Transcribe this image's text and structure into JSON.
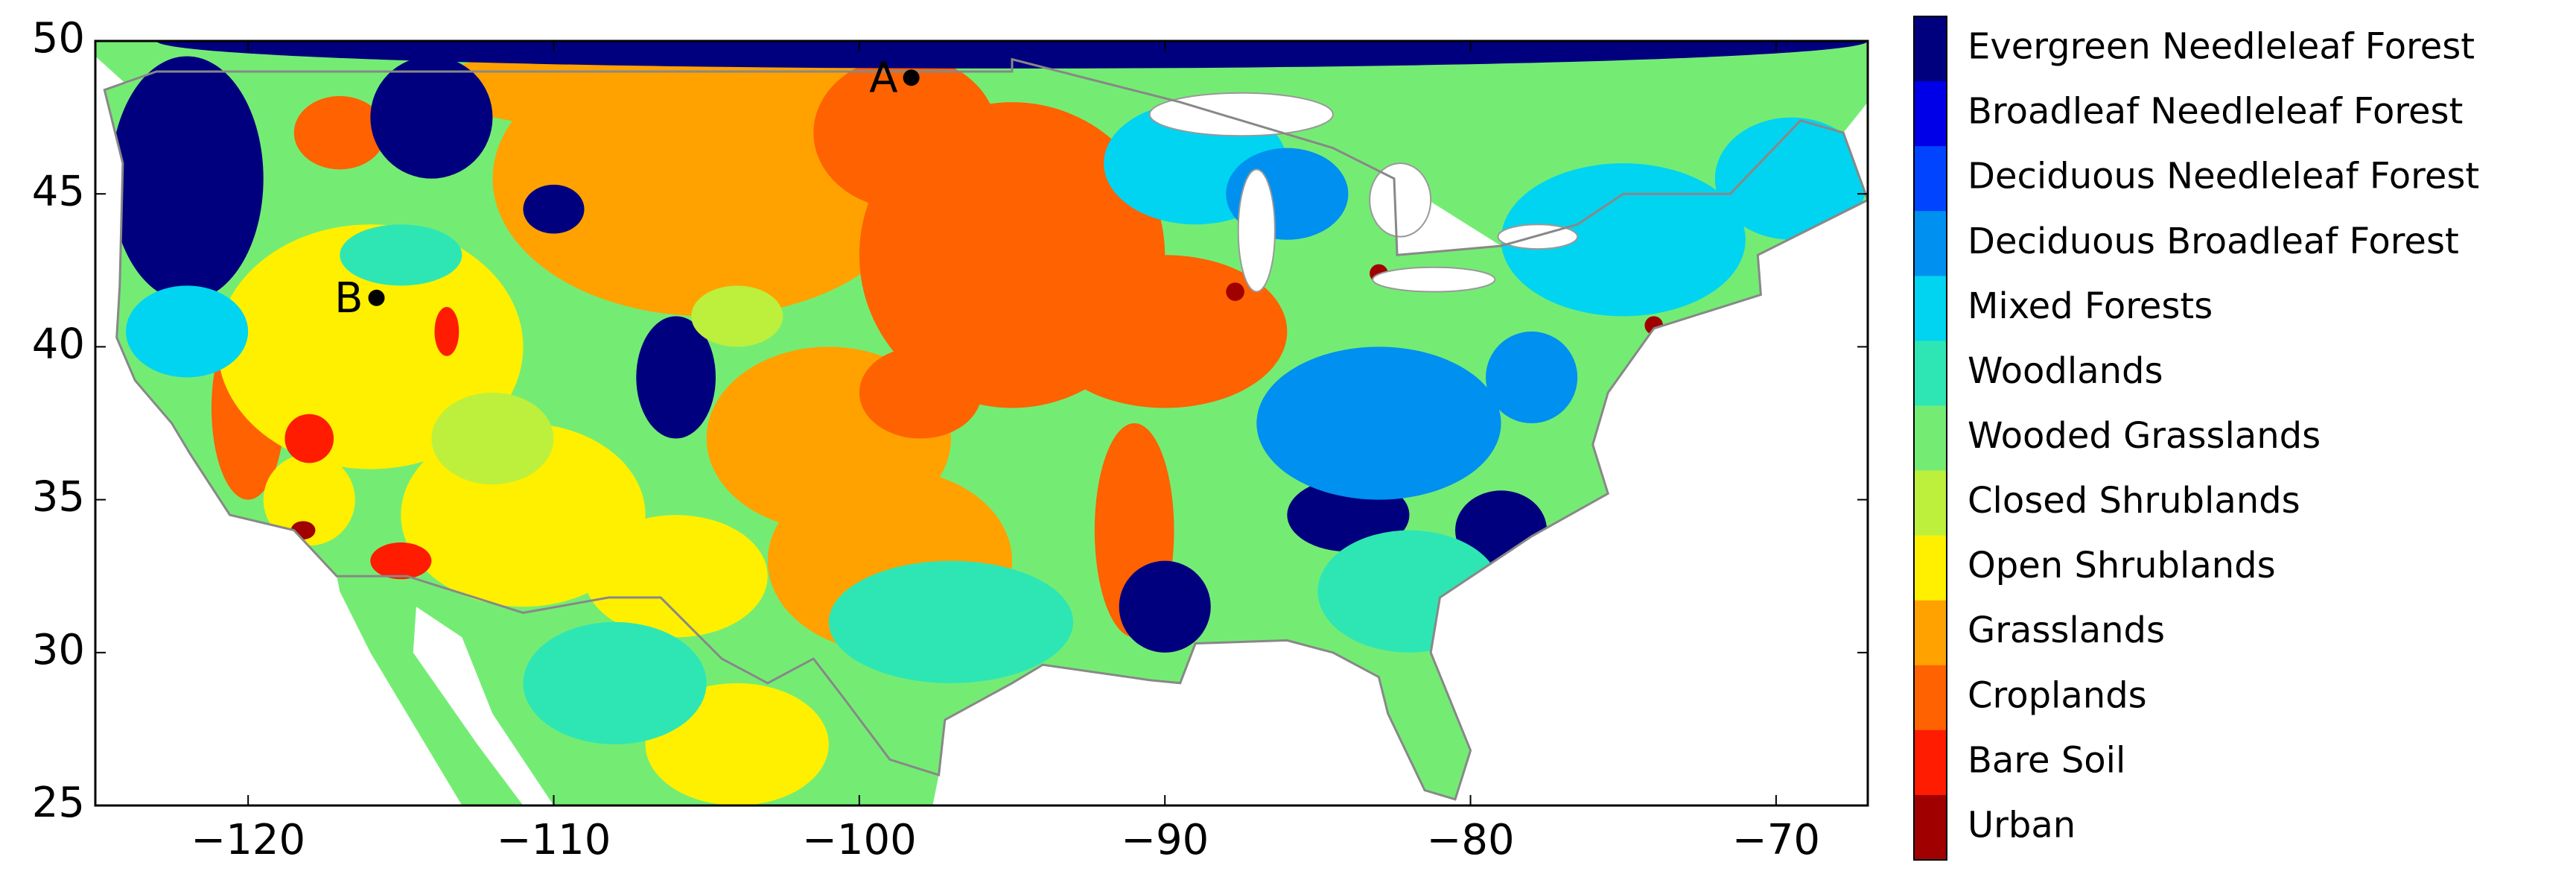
{
  "chart_data": {
    "type": "map",
    "xlim": [
      -125,
      -67
    ],
    "ylim": [
      25,
      50
    ],
    "xticks": [
      {
        "value": -120,
        "label": "−120"
      },
      {
        "value": -110,
        "label": "−110"
      },
      {
        "value": -100,
        "label": "−100"
      },
      {
        "value": -90,
        "label": "−90"
      },
      {
        "value": -80,
        "label": "−80"
      },
      {
        "value": -70,
        "label": "−70"
      }
    ],
    "yticks": [
      25,
      30,
      35,
      40,
      45,
      50
    ],
    "legend": {
      "categories": [
        "Evergreen Needleleaf Forest",
        "Broadleaf Needleleaf Forest",
        "Deciduous Needleleaf Forest",
        "Deciduous Broadleaf Forest",
        "Mixed Forests",
        "Woodlands",
        "Wooded Grasslands",
        "Closed Shrublands",
        "Open Shrublands",
        "Grasslands",
        "Croplands",
        "Bare Soil",
        "Urban"
      ],
      "colors": [
        "#00007f",
        "#0000e8",
        "#0044ff",
        "#0090f0",
        "#00d4f0",
        "#2ee6b4",
        "#74ec74",
        "#bcf03c",
        "#fff000",
        "#ffa200",
        "#ff6200",
        "#ff1c00",
        "#a00000"
      ]
    },
    "points": [
      {
        "label": "A",
        "x": -98.3,
        "y": 48.8
      },
      {
        "label": "B",
        "x": -115.8,
        "y": 41.6
      }
    ]
  }
}
